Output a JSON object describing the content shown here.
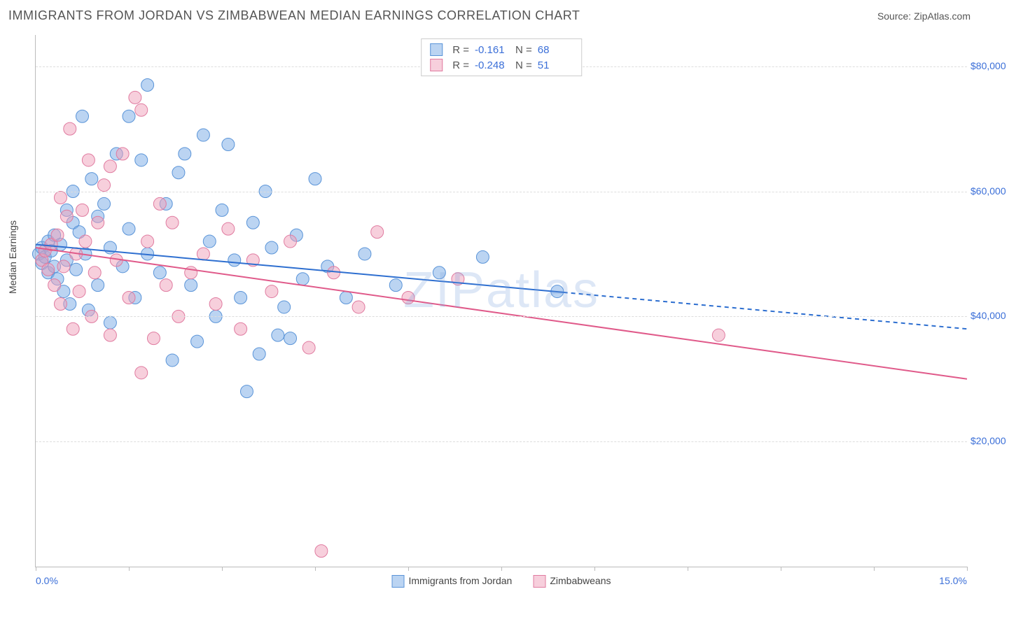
{
  "header": {
    "title": "IMMIGRANTS FROM JORDAN VS ZIMBABWEAN MEDIAN EARNINGS CORRELATION CHART",
    "source_prefix": "Source: ",
    "source_name": "ZipAtlas.com"
  },
  "chart": {
    "type": "scatter",
    "ylabel": "Median Earnings",
    "xlim": [
      0,
      15
    ],
    "ylim": [
      0,
      85000
    ],
    "x_tick_positions": [
      0,
      1.5,
      3,
      4.5,
      6,
      7.5,
      9,
      10.5,
      12,
      13.5,
      15
    ],
    "x_start_label": "0.0%",
    "x_end_label": "15.0%",
    "y_gridlines": [
      20000,
      40000,
      60000,
      80000
    ],
    "y_tick_labels": [
      "$20,000",
      "$40,000",
      "$60,000",
      "$80,000"
    ],
    "grid_color": "#dddddd",
    "axis_color": "#bbbbbb",
    "background_color": "#ffffff",
    "watermark": "ZIPatlas",
    "series": [
      {
        "name": "Immigrants from Jordan",
        "fill": "rgba(120,170,230,0.5)",
        "stroke": "#5a94d8",
        "marker_radius": 9,
        "trend": {
          "y_at_x0": 51500,
          "y_at_x15": 38000,
          "solid_until_x": 8.5,
          "color": "#2e6fd0",
          "width": 2
        },
        "stats": {
          "R": "-0.161",
          "N": "68"
        },
        "points": [
          [
            0.05,
            50000
          ],
          [
            0.1,
            51000
          ],
          [
            0.1,
            48500
          ],
          [
            0.15,
            49500
          ],
          [
            0.2,
            52000
          ],
          [
            0.2,
            47000
          ],
          [
            0.25,
            50500
          ],
          [
            0.3,
            48000
          ],
          [
            0.3,
            53000
          ],
          [
            0.35,
            46000
          ],
          [
            0.4,
            51500
          ],
          [
            0.45,
            44000
          ],
          [
            0.5,
            57000
          ],
          [
            0.5,
            49000
          ],
          [
            0.55,
            42000
          ],
          [
            0.6,
            55000
          ],
          [
            0.6,
            60000
          ],
          [
            0.65,
            47500
          ],
          [
            0.7,
            53500
          ],
          [
            0.75,
            72000
          ],
          [
            0.8,
            50000
          ],
          [
            0.85,
            41000
          ],
          [
            0.9,
            62000
          ],
          [
            1.0,
            56000
          ],
          [
            1.0,
            45000
          ],
          [
            1.1,
            58000
          ],
          [
            1.2,
            51000
          ],
          [
            1.2,
            39000
          ],
          [
            1.3,
            66000
          ],
          [
            1.4,
            48000
          ],
          [
            1.5,
            54000
          ],
          [
            1.5,
            72000
          ],
          [
            1.6,
            43000
          ],
          [
            1.7,
            65000
          ],
          [
            1.8,
            77000
          ],
          [
            1.8,
            50000
          ],
          [
            2.0,
            47000
          ],
          [
            2.1,
            58000
          ],
          [
            2.2,
            33000
          ],
          [
            2.3,
            63000
          ],
          [
            2.4,
            66000
          ],
          [
            2.5,
            45000
          ],
          [
            2.6,
            36000
          ],
          [
            2.7,
            69000
          ],
          [
            2.8,
            52000
          ],
          [
            2.9,
            40000
          ],
          [
            3.0,
            57000
          ],
          [
            3.1,
            67500
          ],
          [
            3.2,
            49000
          ],
          [
            3.3,
            43000
          ],
          [
            3.4,
            28000
          ],
          [
            3.5,
            55000
          ],
          [
            3.6,
            34000
          ],
          [
            3.7,
            60000
          ],
          [
            3.8,
            51000
          ],
          [
            3.9,
            37000
          ],
          [
            4.0,
            41500
          ],
          [
            4.1,
            36500
          ],
          [
            4.2,
            53000
          ],
          [
            4.3,
            46000
          ],
          [
            4.5,
            62000
          ],
          [
            4.7,
            48000
          ],
          [
            5.0,
            43000
          ],
          [
            5.3,
            50000
          ],
          [
            5.8,
            45000
          ],
          [
            6.5,
            47000
          ],
          [
            7.2,
            49500
          ],
          [
            8.4,
            44000
          ]
        ]
      },
      {
        "name": "Zimbabweans",
        "fill": "rgba(240,160,185,0.5)",
        "stroke": "#e07ba0",
        "marker_radius": 9,
        "trend": {
          "y_at_x0": 51000,
          "y_at_x15": 30000,
          "solid_until_x": 15,
          "color": "#e05a8a",
          "width": 2
        },
        "stats": {
          "R": "-0.248",
          "N": "51"
        },
        "points": [
          [
            0.1,
            49000
          ],
          [
            0.15,
            50500
          ],
          [
            0.2,
            47500
          ],
          [
            0.25,
            51500
          ],
          [
            0.3,
            45000
          ],
          [
            0.35,
            53000
          ],
          [
            0.4,
            59000
          ],
          [
            0.4,
            42000
          ],
          [
            0.45,
            48000
          ],
          [
            0.5,
            56000
          ],
          [
            0.55,
            70000
          ],
          [
            0.6,
            38000
          ],
          [
            0.65,
            50000
          ],
          [
            0.7,
            44000
          ],
          [
            0.75,
            57000
          ],
          [
            0.8,
            52000
          ],
          [
            0.85,
            65000
          ],
          [
            0.9,
            40000
          ],
          [
            0.95,
            47000
          ],
          [
            1.0,
            55000
          ],
          [
            1.1,
            61000
          ],
          [
            1.2,
            64000
          ],
          [
            1.2,
            37000
          ],
          [
            1.3,
            49000
          ],
          [
            1.4,
            66000
          ],
          [
            1.5,
            43000
          ],
          [
            1.6,
            75000
          ],
          [
            1.7,
            73000
          ],
          [
            1.7,
            31000
          ],
          [
            1.8,
            52000
          ],
          [
            1.9,
            36500
          ],
          [
            2.0,
            58000
          ],
          [
            2.1,
            45000
          ],
          [
            2.2,
            55000
          ],
          [
            2.3,
            40000
          ],
          [
            2.5,
            47000
          ],
          [
            2.7,
            50000
          ],
          [
            2.9,
            42000
          ],
          [
            3.1,
            54000
          ],
          [
            3.3,
            38000
          ],
          [
            3.5,
            49000
          ],
          [
            3.8,
            44000
          ],
          [
            4.1,
            52000
          ],
          [
            4.4,
            35000
          ],
          [
            4.6,
            2500
          ],
          [
            4.8,
            47000
          ],
          [
            5.2,
            41500
          ],
          [
            5.5,
            53500
          ],
          [
            6.0,
            43000
          ],
          [
            6.8,
            46000
          ],
          [
            11.0,
            37000
          ]
        ]
      }
    ],
    "bottom_legend": [
      {
        "fill": "rgba(120,170,230,0.5)",
        "stroke": "#5a94d8",
        "label": "Immigrants from Jordan"
      },
      {
        "fill": "rgba(240,160,185,0.5)",
        "stroke": "#e07ba0",
        "label": "Zimbabweans"
      }
    ]
  }
}
